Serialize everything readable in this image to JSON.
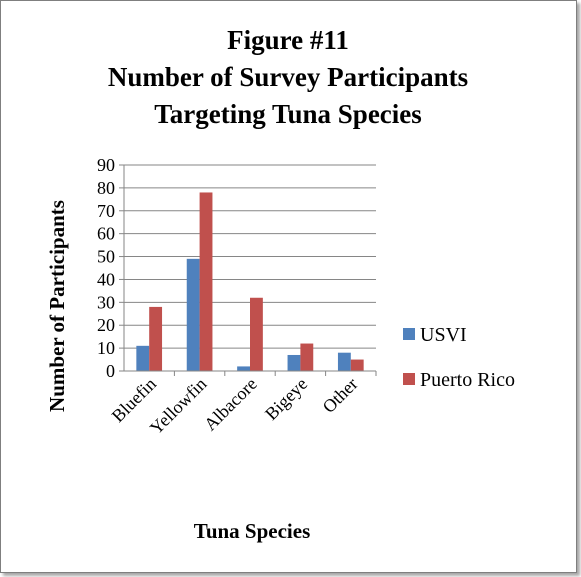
{
  "chart_data": {
    "type": "bar",
    "title": [
      "Figure #11",
      "Number of Survey Participants",
      "Targeting Tuna Species"
    ],
    "xlabel": "Tuna Species",
    "ylabel": "Number of Participants",
    "categories": [
      "Bluefin",
      "Yellowfin",
      "Albacore",
      "Bigeye",
      "Other"
    ],
    "series": [
      {
        "name": "USVI",
        "color": "#4f81bd",
        "values": [
          11,
          49,
          2,
          7,
          8
        ]
      },
      {
        "name": "Puerto Rico",
        "color": "#c0504d",
        "values": [
          28,
          78,
          32,
          12,
          5
        ]
      }
    ],
    "ylim": [
      0,
      90
    ],
    "yticks": [
      0,
      10,
      20,
      30,
      40,
      50,
      60,
      70,
      80,
      90
    ],
    "grid": true,
    "legend_position": "right"
  }
}
